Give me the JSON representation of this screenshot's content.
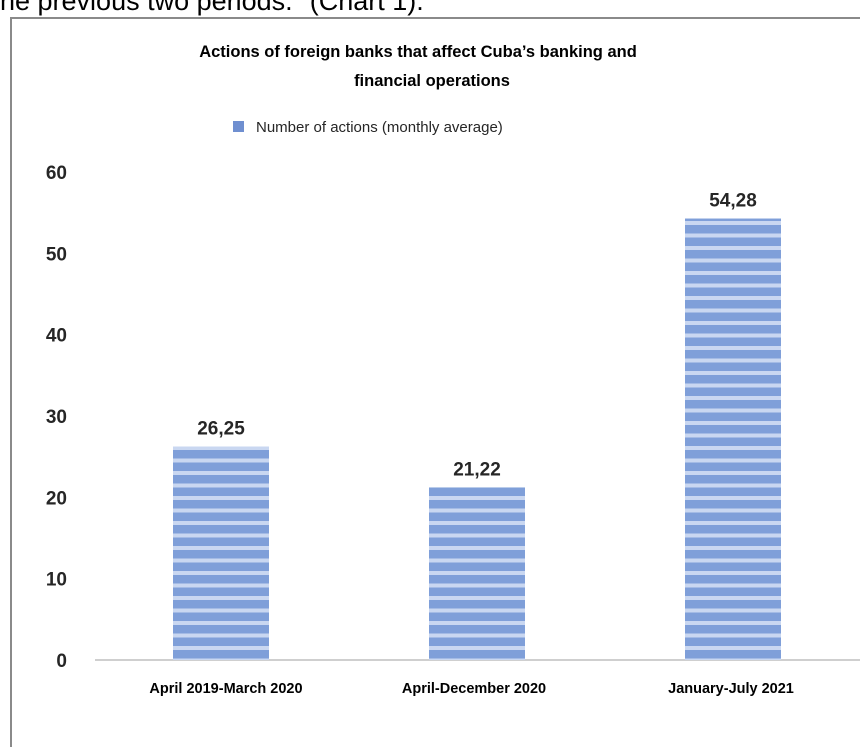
{
  "context_text": "he previous two periods.\" (Chart 1).",
  "chart_data": {
    "type": "bar",
    "title_line1": "Actions of foreign banks that affect Cuba’s banking and",
    "title_line2": "financial operations",
    "categories": [
      "April 2019-March 2020",
      "April-December 2020",
      "January-July 2021"
    ],
    "values": [
      26.25,
      21.22,
      54.28
    ],
    "value_labels": [
      "26,25",
      "21,22",
      "54,28"
    ],
    "series": [
      {
        "name": "Number of actions (monthly average)",
        "values": [
          26.25,
          21.22,
          54.28
        ]
      }
    ],
    "ylim": [
      0,
      60
    ],
    "yticks": [
      "0",
      "10",
      "20",
      "30",
      "40",
      "50",
      "60"
    ],
    "grid": false,
    "legend_position": "top-center",
    "colors": {
      "bar": "#7f9fd9",
      "bar_stripe": "#c9d7f1",
      "axis": "#bfbfbf",
      "text": "#262626"
    }
  }
}
